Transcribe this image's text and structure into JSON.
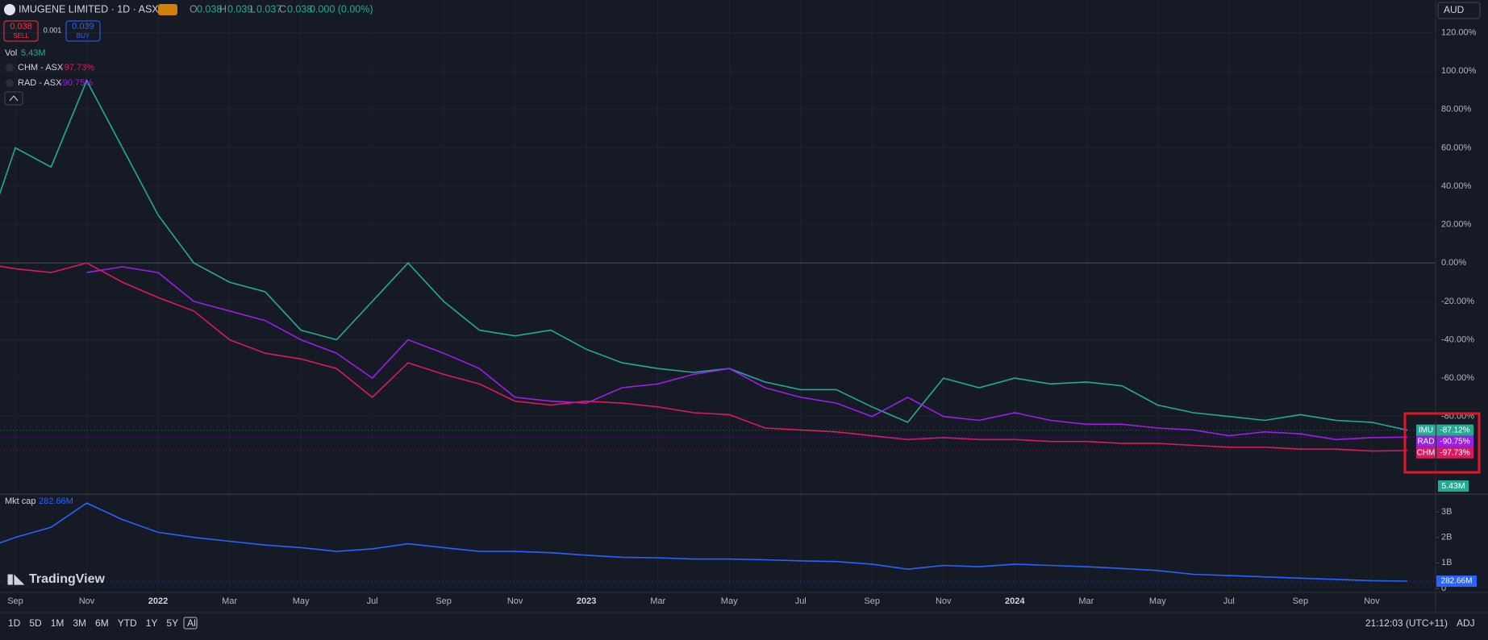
{
  "header": {
    "symbol": "IMUGENE LIMITED · 1D · ASX",
    "o_label": "O",
    "o": "0.038",
    "h_label": "H",
    "h": "0.039",
    "l_label": "L",
    "l": "0.037",
    "c_label": "C",
    "c": "0.038",
    "change": "0.000 (0.00%)",
    "sell_price": "0.038",
    "sell": "SELL",
    "spread": "0.001",
    "buy_price": "0.039",
    "buy": "BUY",
    "currency": "AUD"
  },
  "legend": {
    "vol_label": "Vol",
    "vol": "5.43M",
    "items": [
      {
        "label": "CHM - ASX",
        "change": "-97.73%"
      },
      {
        "label": "RAD - ASX",
        "change": "-90.75%"
      }
    ]
  },
  "volume_badge": "5.43M",
  "logo": "TradingView",
  "toolbar": {
    "ranges": [
      "1D",
      "5D",
      "1M",
      "3M",
      "6M",
      "YTD",
      "1Y",
      "5Y",
      "All"
    ],
    "time": "21:12:03 (UTC+11)",
    "adj": "ADJ"
  },
  "chart_data": [
    {
      "type": "line",
      "categories": [
        null,
        "Sep",
        null,
        "Nov",
        null,
        "2022",
        null,
        "Mar",
        null,
        "May",
        null,
        "Jul",
        null,
        "Sep",
        null,
        "Nov",
        null,
        "2023",
        null,
        "Mar",
        null,
        "May",
        null,
        "Jul",
        null,
        "Sep",
        null,
        "Nov",
        null,
        "2024",
        null,
        "Mar",
        null,
        "May",
        null,
        "Jul",
        null,
        "Sep",
        null,
        "Nov",
        null
      ],
      "ylim": [
        -120,
        137
      ],
      "yticks": [
        {
          "value": 120,
          "label": "120.00%"
        },
        {
          "value": 100,
          "label": "100.00%"
        },
        {
          "value": 80,
          "label": "80.00%"
        },
        {
          "value": 60,
          "label": "60.00%"
        },
        {
          "value": 40,
          "label": "40.00%"
        },
        {
          "value": 20,
          "label": "20.00%"
        },
        {
          "value": 0,
          "label": "0.00%"
        },
        {
          "value": -20,
          "label": "-20.00%"
        },
        {
          "value": -40,
          "label": "-40.00%"
        },
        {
          "value": -60,
          "label": "-60.00%"
        },
        {
          "value": -80,
          "label": "-80.00%"
        }
      ],
      "grid": true,
      "series": [
        {
          "name": "IMU",
          "color": "#22ab94",
          "values": [
            5,
            60,
            50,
            95,
            60,
            25,
            0,
            -10,
            -15,
            -35,
            -40,
            -20,
            0,
            -20,
            -35,
            -38,
            -35,
            -45,
            -52,
            -55,
            -57,
            -55,
            -62,
            -66,
            -66,
            -75,
            -83,
            -60,
            -65,
            -60,
            -63,
            -62,
            -64,
            -74,
            -78,
            -80,
            -82,
            -79,
            -82,
            -83,
            -87.12
          ],
          "value_labels": [
            null,
            null,
            null,
            null,
            null,
            null,
            null,
            null,
            null,
            null,
            null,
            null,
            null,
            null,
            null,
            null,
            null,
            null,
            null,
            null,
            null,
            null,
            null,
            null,
            null,
            null,
            null,
            null,
            null,
            null,
            null,
            null,
            null,
            null,
            null,
            null,
            null,
            null,
            null,
            null,
            "-87.12%"
          ]
        },
        {
          "name": "RAD",
          "color": "#9c1ee8",
          "values": [
            null,
            null,
            null,
            -5,
            -2,
            -5,
            -20,
            -25,
            -30,
            -40,
            -47,
            -60,
            -40,
            -47,
            -55,
            -70,
            -72,
            -73,
            -65,
            -63,
            -58,
            -55,
            -65,
            -70,
            -73,
            -80,
            -70,
            -80,
            -82,
            -78,
            -82,
            -84,
            -84,
            -86,
            -87,
            -90,
            -88,
            -89,
            -92,
            -91,
            -90.75
          ],
          "value_labels": [
            null,
            null,
            null,
            null,
            null,
            null,
            null,
            null,
            null,
            null,
            null,
            null,
            null,
            null,
            null,
            null,
            null,
            null,
            null,
            null,
            null,
            null,
            null,
            null,
            null,
            null,
            null,
            null,
            null,
            null,
            null,
            null,
            null,
            null,
            null,
            null,
            null,
            null,
            null,
            null,
            "-90.75%"
          ]
        },
        {
          "name": "CHM",
          "color": "#d81b60",
          "values": [
            0,
            -3,
            -5,
            0,
            -10,
            -18,
            -25,
            -40,
            -47,
            -50,
            -55,
            -70,
            -52,
            -58,
            -63,
            -72,
            -74,
            -72,
            -73,
            -75,
            -78,
            -79,
            -86,
            -87,
            -88,
            -90,
            -92,
            -91,
            -92,
            -92,
            -93,
            -93,
            -94,
            -94,
            -95,
            -96,
            -96,
            -97,
            -97,
            -98,
            -97.73
          ],
          "value_labels": [
            null,
            null,
            null,
            null,
            null,
            null,
            null,
            null,
            null,
            null,
            null,
            null,
            null,
            null,
            null,
            null,
            null,
            null,
            null,
            null,
            null,
            null,
            null,
            null,
            null,
            null,
            null,
            null,
            null,
            null,
            null,
            null,
            null,
            null,
            null,
            null,
            null,
            null,
            null,
            null,
            "-97.73%"
          ]
        }
      ]
    },
    {
      "type": "line",
      "ylim": [
        -0.13,
        3.67
      ],
      "yticks": [
        0,
        {
          "value": 1,
          "label": "1B"
        },
        {
          "value": 2,
          "label": "2B"
        },
        {
          "value": 3,
          "label": "3B"
        }
      ],
      "series": [
        {
          "name": "Mkt cap",
          "color": "#2962ff",
          "values": [
            1.5,
            2.0,
            2.4,
            3.35,
            2.7,
            2.2,
            2.0,
            1.85,
            1.7,
            1.6,
            1.45,
            1.55,
            1.75,
            1.6,
            1.45,
            1.45,
            1.4,
            1.3,
            1.22,
            1.2,
            1.15,
            1.15,
            1.12,
            1.08,
            1.05,
            0.95,
            0.75,
            0.9,
            0.85,
            0.95,
            0.9,
            0.85,
            0.78,
            0.7,
            0.55,
            0.5,
            0.45,
            0.4,
            0.35,
            0.3,
            0.28266
          ],
          "value_labels": [
            null,
            null,
            null,
            null,
            null,
            null,
            null,
            null,
            null,
            null,
            null,
            null,
            null,
            null,
            null,
            null,
            null,
            null,
            null,
            null,
            null,
            null,
            null,
            null,
            null,
            null,
            null,
            null,
            null,
            null,
            null,
            null,
            null,
            null,
            null,
            null,
            null,
            null,
            null,
            null,
            "282.66M"
          ]
        }
      ]
    }
  ]
}
